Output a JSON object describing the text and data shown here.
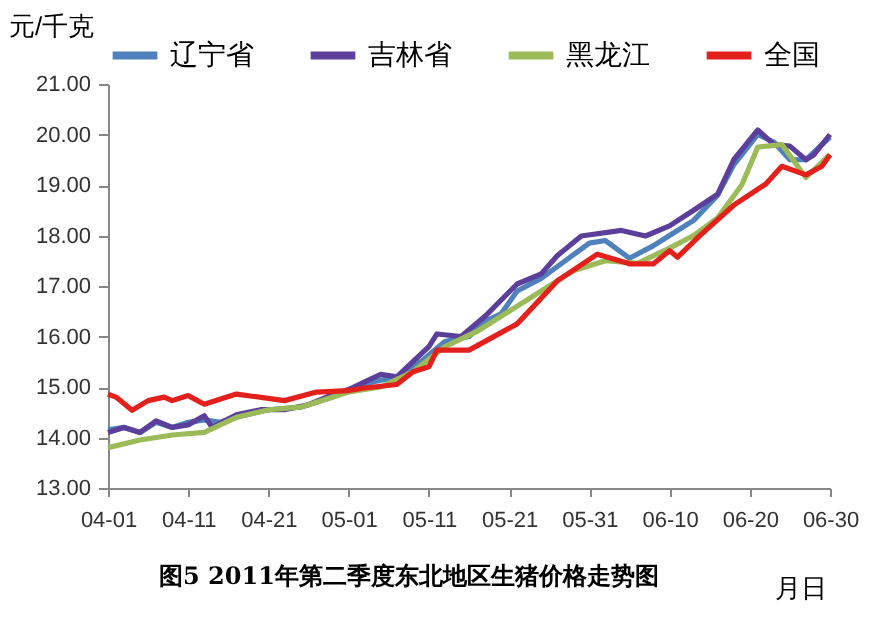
{
  "chart_data": {
    "type": "line",
    "title": "图5   2011年第二季度东北地区生猪价格走势图",
    "xlabel": "月日",
    "ylabel": "元/千克",
    "xlim": [
      "--04-01",
      "--06-30"
    ],
    "xticks": [
      {
        "value": "--04-01",
        "label": "04-01"
      },
      {
        "value": "--04-11",
        "label": "04-11"
      },
      {
        "value": "--04-21",
        "label": "04-21"
      },
      {
        "value": "--05-01",
        "label": "05-01"
      },
      {
        "value": "--05-11",
        "label": "05-11"
      },
      {
        "value": "--05-21",
        "label": "05-21"
      },
      {
        "value": "--05-31",
        "label": "05-31"
      },
      {
        "value": "--06-10",
        "label": "06-10"
      },
      {
        "value": "--06-20",
        "label": "06-20"
      },
      {
        "value": "--06-30",
        "label": "06-30"
      }
    ],
    "ylim": [
      13,
      21
    ],
    "yticks": [
      {
        "value": 13,
        "label": "13.00"
      },
      {
        "value": 14,
        "label": "14.00"
      },
      {
        "value": 15,
        "label": "15.00"
      },
      {
        "value": 16,
        "label": "16.00"
      },
      {
        "value": 17,
        "label": "17.00"
      },
      {
        "value": 18,
        "label": "18.00"
      },
      {
        "value": 19,
        "label": "19.00"
      },
      {
        "value": 20,
        "label": "20.00"
      },
      {
        "value": 21,
        "label": "21.00"
      }
    ],
    "legend": "top",
    "series": [
      {
        "name": "辽宁省",
        "color": "#4f81bd",
        "x": [
          "--04-01",
          "--04-03",
          "--04-05",
          "--04-07",
          "--04-09",
          "--04-11",
          "--04-13",
          "--04-15",
          "--04-17",
          "--04-21",
          "--04-25",
          "--04-29",
          "--05-01",
          "--05-04",
          "--05-07",
          "--05-10",
          "--05-13",
          "--05-16",
          "--05-18",
          "--05-20",
          "--05-22",
          "--05-25",
          "--05-28",
          "--05-31",
          "--06-02",
          "--06-05",
          "--06-08",
          "--06-10",
          "--06-13",
          "--06-16",
          "--06-18",
          "--06-21",
          "--06-23",
          "--06-25",
          "--06-27",
          "--06-30"
        ],
        "values": [
          14.15,
          14.2,
          14.1,
          14.3,
          14.2,
          14.3,
          14.35,
          14.3,
          14.4,
          14.55,
          14.6,
          14.8,
          14.95,
          15.1,
          15.2,
          15.5,
          15.9,
          16.0,
          16.3,
          16.45,
          16.9,
          17.15,
          17.5,
          17.85,
          17.9,
          17.55,
          17.8,
          18.0,
          18.3,
          18.8,
          19.4,
          20.0,
          19.85,
          19.5,
          19.5,
          19.95
        ]
      },
      {
        "name": "吉林省",
        "color": "#5b3f9a",
        "x": [
          "--04-01",
          "--04-03",
          "--04-05",
          "--04-07",
          "--04-09",
          "--04-11",
          "--04-13",
          "--04-14",
          "--04-17",
          "--04-20",
          "--04-23",
          "--04-26",
          "--04-29",
          "--05-01",
          "--05-03",
          "--05-05",
          "--05-07",
          "--05-09",
          "--05-11",
          "--05-12",
          "--05-15",
          "--05-18",
          "--05-22",
          "--05-25",
          "--05-27",
          "--05-30",
          "--06-04",
          "--06-07",
          "--06-10",
          "--06-13",
          "--06-16",
          "--06-18",
          "--06-21",
          "--06-23",
          "--06-25",
          "--06-27",
          "--06-28",
          "--06-30"
        ],
        "values": [
          14.1,
          14.2,
          14.1,
          14.33,
          14.2,
          14.25,
          14.43,
          14.2,
          14.45,
          14.55,
          14.55,
          14.65,
          14.85,
          14.95,
          15.1,
          15.25,
          15.2,
          15.5,
          15.8,
          16.05,
          16.0,
          16.4,
          17.04,
          17.24,
          17.6,
          17.99,
          18.1,
          17.99,
          18.19,
          18.5,
          18.82,
          19.5,
          20.09,
          19.8,
          19.77,
          19.5,
          19.6,
          20.0
        ]
      },
      {
        "name": "黑龙江",
        "color": "#9bbb59",
        "x": [
          "--04-01",
          "--04-05",
          "--04-09",
          "--04-13",
          "--04-17",
          "--04-21",
          "--04-25",
          "--05-01",
          "--05-05",
          "--05-09",
          "--05-13",
          "--05-17",
          "--05-21",
          "--05-25",
          "--05-29",
          "--06-02",
          "--06-06",
          "--06-10",
          "--06-13",
          "--06-16",
          "--06-19",
          "--06-21",
          "--06-24",
          "--06-27",
          "--06-30"
        ],
        "values": [
          13.8,
          13.95,
          14.05,
          14.1,
          14.4,
          14.55,
          14.6,
          14.9,
          15.0,
          15.3,
          15.8,
          16.1,
          16.5,
          16.9,
          17.3,
          17.5,
          17.45,
          17.75,
          18.0,
          18.35,
          19.0,
          19.75,
          19.8,
          19.15,
          19.6
        ]
      },
      {
        "name": "全国",
        "color": "#e3201b",
        "x": [
          "--04-01",
          "--04-02",
          "--04-04",
          "--04-06",
          "--04-08",
          "--04-09",
          "--04-11",
          "--04-13",
          "--04-17",
          "--04-23",
          "--04-27",
          "--05-01",
          "--05-03",
          "--05-07",
          "--05-09",
          "--05-11",
          "--05-12",
          "--05-16",
          "--05-22",
          "--05-27",
          "--06-01",
          "--06-05",
          "--06-08",
          "--06-10",
          "--06-11",
          "--06-14",
          "--06-18",
          "--06-22",
          "--06-24",
          "--06-27",
          "--06-29",
          "--06-30"
        ],
        "values": [
          14.86,
          14.8,
          14.54,
          14.73,
          14.8,
          14.73,
          14.83,
          14.66,
          14.86,
          14.73,
          14.9,
          14.93,
          14.98,
          15.05,
          15.3,
          15.4,
          15.73,
          15.73,
          16.25,
          17.1,
          17.63,
          17.44,
          17.44,
          17.7,
          17.57,
          18.03,
          18.6,
          19.02,
          19.37,
          19.2,
          19.37,
          19.6
        ]
      }
    ]
  }
}
